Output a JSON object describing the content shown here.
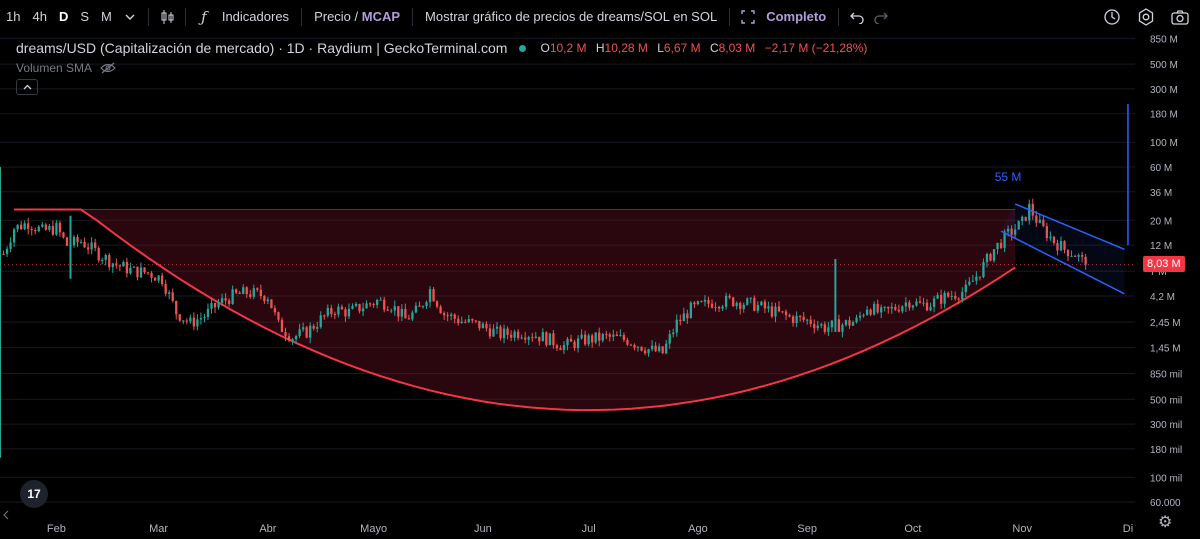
{
  "toolbar": {
    "timeframes": [
      "1h",
      "4h",
      "D",
      "S",
      "M"
    ],
    "active_timeframe": "D",
    "indicators_label": "Indicadores",
    "price_label": "Precio",
    "mcap_label": "MCAP",
    "sol_label": "Mostrar gráfico de precios de dreams/SOL en SOL",
    "complete_label": "Completo"
  },
  "legend": {
    "title": "dreams/USD (Capitalización de mercado) · 1D · Raydium | GeckoTerminal.com",
    "o_key": "O",
    "o_val": "10,2 M",
    "h_key": "H",
    "h_val": "10,28 M",
    "l_key": "L",
    "l_val": "6,67 M",
    "c_key": "C",
    "c_val": "8,03 M",
    "change": "−2,17 M (−21,28%)",
    "volume_label": "Volumen SMA"
  },
  "current_price_label": "8,03 M",
  "logo_text": "17",
  "colors": {
    "up": "#26a69a",
    "down": "#ef5350",
    "curve": "#f23645",
    "channel": "#2962ff",
    "fill": "rgba(120,20,40,0.35)"
  },
  "chart_data": {
    "type": "candlestick",
    "title": "dreams/USD (Capitalización de mercado) · 1D · Raydium | GeckoTerminal.com",
    "y_scale": "log",
    "ylim": [
      50000,
      950000000
    ],
    "y_ticks": [
      {
        "v": 850000000,
        "label": "850 M"
      },
      {
        "v": 500000000,
        "label": "500 M"
      },
      {
        "v": 300000000,
        "label": "300 M"
      },
      {
        "v": 180000000,
        "label": "180 M"
      },
      {
        "v": 100000000,
        "label": "100 M"
      },
      {
        "v": 60000000,
        "label": "60 M"
      },
      {
        "v": 36000000,
        "label": "36 M"
      },
      {
        "v": 20000000,
        "label": "20 M"
      },
      {
        "v": 12000000,
        "label": "12 M"
      },
      {
        "v": 7000000,
        "label": "7 M"
      },
      {
        "v": 4200000,
        "label": "4,2 M"
      },
      {
        "v": 2450000,
        "label": "2,45 M"
      },
      {
        "v": 1450000,
        "label": "1,45 M"
      },
      {
        "v": 850000,
        "label": "850 mil"
      },
      {
        "v": 500000,
        "label": "500 mil"
      },
      {
        "v": 300000,
        "label": "300 mil"
      },
      {
        "v": 180000,
        "label": "180 mil"
      },
      {
        "v": 100000,
        "label": "100 mil"
      },
      {
        "v": 60000,
        "label": "60.000"
      }
    ],
    "x_ticks": [
      {
        "day": 0,
        "label": "Feb"
      },
      {
        "day": 29,
        "label": "Mar"
      },
      {
        "day": 60,
        "label": "Abr"
      },
      {
        "day": 90,
        "label": "Mayo"
      },
      {
        "day": 121,
        "label": "Jun"
      },
      {
        "day": 151,
        "label": "Jul"
      },
      {
        "day": 182,
        "label": "Ago"
      },
      {
        "day": 213,
        "label": "Sep"
      },
      {
        "day": 243,
        "label": "Oct"
      },
      {
        "day": 274,
        "label": "Nov"
      },
      {
        "day": 304,
        "label": "Di"
      }
    ],
    "xlim": [
      -16,
      306
    ],
    "close_path": [
      [
        -15,
        10000000
      ],
      [
        -12,
        17000000
      ],
      [
        -8,
        19000000
      ],
      [
        -4,
        16000000
      ],
      [
        0,
        17000000
      ],
      [
        3,
        12000000
      ],
      [
        7,
        13000000
      ],
      [
        12,
        10000000
      ],
      [
        17,
        8000000
      ],
      [
        22,
        7000000
      ],
      [
        26,
        6800000
      ],
      [
        30,
        6000000
      ],
      [
        34,
        3000000
      ],
      [
        38,
        2400000
      ],
      [
        42,
        2800000
      ],
      [
        46,
        3600000
      ],
      [
        50,
        4200000
      ],
      [
        54,
        4500000
      ],
      [
        58,
        4300000
      ],
      [
        60,
        4200000
      ],
      [
        63,
        2300000
      ],
      [
        67,
        1800000
      ],
      [
        71,
        2000000
      ],
      [
        75,
        2600000
      ],
      [
        79,
        3200000
      ],
      [
        83,
        3000000
      ],
      [
        87,
        3400000
      ],
      [
        91,
        3800000
      ],
      [
        95,
        3500000
      ],
      [
        99,
        2600000
      ],
      [
        103,
        3200000
      ],
      [
        106,
        4800000
      ],
      [
        110,
        2900000
      ],
      [
        115,
        2500000
      ],
      [
        120,
        2300000
      ],
      [
        126,
        1900000
      ],
      [
        132,
        2000000
      ],
      [
        138,
        1800000
      ],
      [
        144,
        1500000
      ],
      [
        150,
        1700000
      ],
      [
        156,
        1800000
      ],
      [
        162,
        1700000
      ],
      [
        168,
        1400000
      ],
      [
        172,
        1300000
      ],
      [
        176,
        2400000
      ],
      [
        180,
        3200000
      ],
      [
        186,
        3700000
      ],
      [
        192,
        3800000
      ],
      [
        198,
        3500000
      ],
      [
        204,
        3000000
      ],
      [
        208,
        2700000
      ],
      [
        214,
        2500000
      ],
      [
        218,
        2200000
      ],
      [
        222,
        2300000
      ],
      [
        227,
        2500000
      ],
      [
        230,
        3400000
      ],
      [
        234,
        2900000
      ],
      [
        238,
        3300000
      ],
      [
        242,
        3800000
      ],
      [
        245,
        3500000
      ],
      [
        248,
        3600000
      ],
      [
        251,
        4000000
      ],
      [
        254,
        4300000
      ],
      [
        258,
        4700000
      ],
      [
        262,
        7000000
      ],
      [
        266,
        11000000
      ],
      [
        270,
        15000000
      ],
      [
        274,
        19000000
      ],
      [
        276,
        26000000
      ],
      [
        279,
        18000000
      ],
      [
        283,
        13000000
      ],
      [
        286,
        11000000
      ],
      [
        289,
        10000000
      ],
      [
        292,
        8030000
      ]
    ],
    "spikes": [
      {
        "day": -16,
        "high": 60000000,
        "low": 150000
      },
      {
        "day": 4,
        "high": 22000000,
        "low": 6000000
      },
      {
        "day": 221,
        "high": 9000000,
        "low": 2000000
      }
    ],
    "rounded_bottom": {
      "zone_top": 25000000,
      "left_day": -12,
      "right_day": 272,
      "bottom_day": 151,
      "bottom_value": 400000
    },
    "channel": {
      "upper": [
        [
          272,
          28000000
        ],
        [
          303,
          11000000
        ]
      ],
      "lower": [
        [
          268,
          16000000
        ],
        [
          303,
          4400000
        ]
      ],
      "label": "55 M",
      "label_value": 45000000,
      "label_day": 270
    },
    "measure_line": {
      "day": 304,
      "from": 12000000,
      "to": 220000000
    },
    "current_price": 8030000
  }
}
